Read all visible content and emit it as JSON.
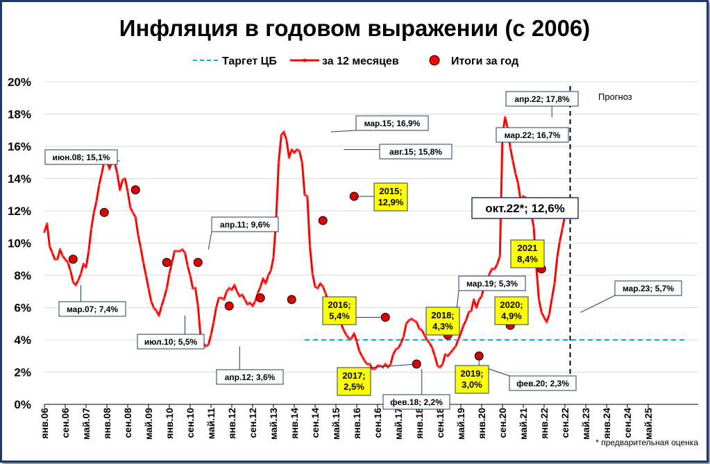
{
  "chart_data": {
    "type": "line",
    "title": "Инфляция в годовом выражении (с 2006)",
    "legend": {
      "position": "top",
      "target": "Таргет ЦБ",
      "monthly": "за 12 месяцев",
      "annual": "Итоги за год"
    },
    "y_ticks": [
      "0%",
      "2%",
      "4%",
      "6%",
      "8%",
      "10%",
      "12%",
      "14%",
      "16%",
      "18%",
      "20%"
    ],
    "ylim": [
      0,
      20
    ],
    "grid": true,
    "x_ticks": [
      "янв.06",
      "сен.06",
      "май.07",
      "янв.08",
      "сен.08",
      "май.09",
      "янв.10",
      "сен.10",
      "май.11",
      "янв.12",
      "сен.12",
      "май.13",
      "янв.14",
      "сен.14",
      "май.15",
      "янв.16",
      "сен.16",
      "май.17",
      "янв.18",
      "сен.18",
      "май.19",
      "янв.20",
      "сен.20",
      "май.21",
      "янв.22",
      "сен.22",
      "май.23",
      "янв.24",
      "сен.24",
      "май.25"
    ],
    "series": [
      {
        "name": "за 12 месяцев",
        "color": "#ff0000",
        "values": [
          10.7,
          11.2,
          9.8,
          9.4,
          9.0,
          9.0,
          9.6,
          9.2,
          9.0,
          8.8,
          8.3,
          7.6,
          7.4,
          7.7,
          8.1,
          8.7,
          8.5,
          9.5,
          10.9,
          11.9,
          12.6,
          13.6,
          14.3,
          15.1,
          15.1,
          14.6,
          15.1,
          15.0,
          14.3,
          13.3,
          13.9,
          14.0,
          13.2,
          12.2,
          11.9,
          11.6,
          10.5,
          9.7,
          8.8,
          8.0,
          7.2,
          6.4,
          6.0,
          5.8,
          5.5,
          6.1,
          6.6,
          7.2,
          8.1,
          8.8,
          9.5,
          9.5,
          9.5,
          9.6,
          9.4,
          8.6,
          8.0,
          7.2,
          7.2,
          6.1,
          4.2,
          3.8,
          3.6,
          3.7,
          4.3,
          5.1,
          6.0,
          6.6,
          6.6,
          6.5,
          7.0,
          7.2,
          7.1,
          7.4,
          7.0,
          6.7,
          6.8,
          6.5,
          6.2,
          6.3,
          6.1,
          6.4,
          6.9,
          7.3,
          7.8,
          7.5,
          8.0,
          8.3,
          9.1,
          11.4,
          15.0,
          16.7,
          16.9,
          16.4,
          15.3,
          15.8,
          15.6,
          15.8,
          15.7,
          15.0,
          13.0,
          12.9,
          9.8,
          8.1,
          7.3,
          7.2,
          7.5,
          7.3,
          6.9,
          6.4,
          6.1,
          5.8,
          5.6,
          5.4,
          5.0,
          4.6,
          4.3,
          4.1,
          4.1,
          4.4,
          3.9,
          3.3,
          3.0,
          2.7,
          2.5,
          2.5,
          2.2,
          2.2,
          2.4,
          2.4,
          2.3,
          2.5,
          2.3,
          2.5,
          3.1,
          3.4,
          3.5,
          3.8,
          4.2,
          5.0,
          5.2,
          5.3,
          5.2,
          5.1,
          4.7,
          4.6,
          4.3,
          4.0,
          3.8,
          3.5,
          3.0,
          2.4,
          2.3,
          2.5,
          3.1,
          3.0,
          3.2,
          3.4,
          3.6,
          4.0,
          4.4,
          4.9,
          5.2,
          5.7,
          5.8,
          6.5,
          6.0,
          6.5,
          6.7,
          7.4,
          7.6,
          8.1,
          8.4,
          8.4,
          8.7,
          9.2,
          16.7,
          17.8,
          17.1,
          15.9,
          15.1,
          14.3,
          13.7,
          12.6,
          12.9,
          12.8,
          12.7,
          11.9,
          11.0,
          8.5,
          6.5,
          5.7,
          5.4,
          5.1,
          5.6,
          6.6,
          7.5,
          9.1,
          10.1,
          10.9,
          11.7,
          12.7,
          12.6,
          12.7,
          12.7
        ]
      },
      {
        "name": "Итоги за год",
        "color": "#c00000",
        "points": [
          [
            11,
            9.0
          ],
          [
            23,
            11.9
          ],
          [
            35,
            13.3
          ],
          [
            47,
            8.8
          ],
          [
            59,
            8.8
          ],
          [
            71,
            6.1
          ],
          [
            83,
            6.6
          ],
          [
            95,
            6.5
          ],
          [
            107,
            11.4
          ],
          [
            119,
            12.9
          ],
          [
            131,
            5.4
          ],
          [
            143,
            2.5
          ],
          [
            155,
            4.3
          ],
          [
            167,
            3.0
          ],
          [
            179,
            4.9
          ],
          [
            191,
            8.4
          ]
        ]
      },
      {
        "name": "Таргет ЦБ",
        "color": "#00b0f0",
        "value": 4.0,
        "from": 100,
        "to": 246
      }
    ],
    "forecast": {
      "at": 202,
      "label": "Прогноз"
    },
    "footnote": "* предварительная оценка",
    "annotations": [
      {
        "text": "мар.07; 7,4%",
        "i": 14,
        "v": 7.4,
        "style": "white"
      },
      {
        "text": "июн.08; 15,1%",
        "i": 29,
        "v": 15.1,
        "style": "white"
      },
      {
        "text": "июл.10; 5,5%",
        "i": 54,
        "v": 5.5,
        "style": "white"
      },
      {
        "text": "апр.11; 9,6%",
        "i": 63,
        "v": 9.6,
        "style": "white"
      },
      {
        "text": "апр.12; 3,6%",
        "i": 75,
        "v": 3.6,
        "style": "white"
      },
      {
        "text": "мар.15; 16,9%",
        "i": 110,
        "v": 16.9,
        "style": "white"
      },
      {
        "text": "авг.15; 15,8%",
        "i": 115,
        "v": 15.8,
        "style": "white"
      },
      {
        "text": "фев.18; 2,2%",
        "i": 145,
        "v": 2.2,
        "style": "white"
      },
      {
        "text": "мар.19; 5,3%",
        "i": 158,
        "v": 5.3,
        "style": "white"
      },
      {
        "text": "фев.20; 2,3%",
        "i": 169,
        "v": 2.3,
        "style": "white"
      },
      {
        "text": "апр.22; 17,8%",
        "i": 195,
        "v": 17.8,
        "style": "white"
      },
      {
        "text": "мар.22; 16,7%",
        "i": 194,
        "v": 16.7,
        "style": "white"
      },
      {
        "text": "окт.22*; 12,6%",
        "i": 201,
        "v": 12.6,
        "style": "big"
      },
      {
        "text": "мар.23; 5,7%",
        "i": 206,
        "v": 5.7,
        "style": "white"
      },
      {
        "lines": [
          "2015;",
          "12,9%"
        ],
        "i": 119,
        "v": 12.9,
        "style": "yellow"
      },
      {
        "lines": [
          "2016;",
          "5,4%"
        ],
        "i": 131,
        "v": 5.4,
        "style": "yellow"
      },
      {
        "lines": [
          "2017;",
          "2,5%"
        ],
        "i": 143,
        "v": 2.5,
        "style": "yellow"
      },
      {
        "lines": [
          "2018;",
          "4,3%"
        ],
        "i": 155,
        "v": 4.3,
        "style": "yellow"
      },
      {
        "lines": [
          "2019;",
          "3,0%"
        ],
        "i": 167,
        "v": 3.0,
        "style": "yellow"
      },
      {
        "lines": [
          "2020;",
          "4,9%"
        ],
        "i": 179,
        "v": 4.9,
        "style": "yellow"
      },
      {
        "lines": [
          "2021",
          "8,4%"
        ],
        "i": 191,
        "v": 8.4,
        "style": "yellow"
      }
    ]
  }
}
